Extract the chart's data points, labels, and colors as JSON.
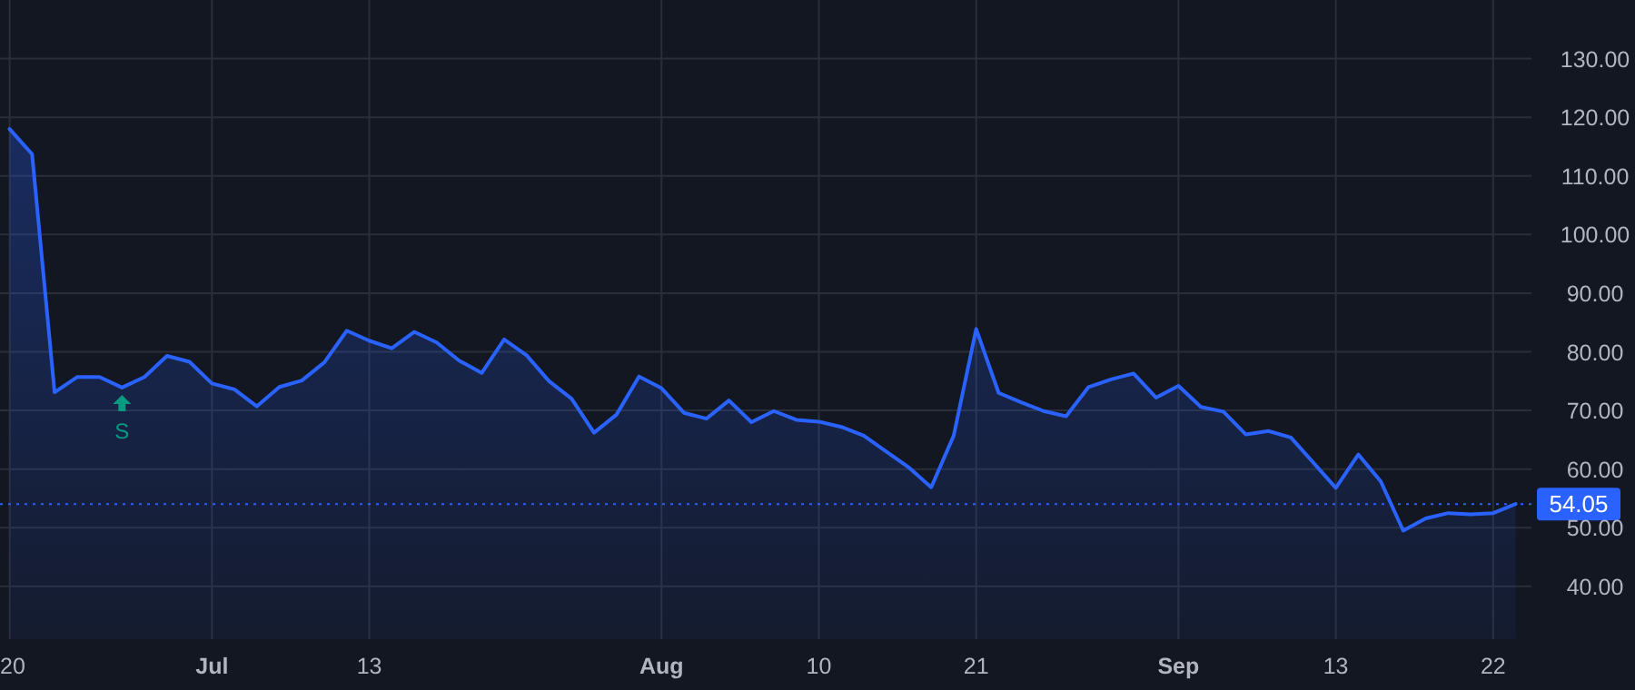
{
  "chart_data": {
    "type": "area",
    "categories": [
      "20",
      null,
      null,
      null,
      null,
      null,
      null,
      null,
      null,
      "Jul",
      null,
      null,
      null,
      null,
      null,
      null,
      "13",
      null,
      null,
      null,
      null,
      null,
      null,
      null,
      null,
      null,
      null,
      null,
      null,
      "Aug",
      null,
      null,
      null,
      null,
      null,
      null,
      "10",
      null,
      null,
      null,
      null,
      null,
      null,
      "21",
      null,
      null,
      null,
      null,
      null,
      null,
      null,
      null,
      "Sep",
      null,
      null,
      null,
      null,
      null,
      null,
      "13",
      null,
      null,
      null,
      null,
      null,
      null,
      "22",
      null
    ],
    "series": [
      {
        "color": "#2962ff",
        "values": [
          118.0,
          113.7,
          73.1,
          75.7,
          75.7,
          73.9,
          75.7,
          79.3,
          78.3,
          74.6,
          73.6,
          70.7,
          74.0,
          75.1,
          78.2,
          83.6,
          81.9,
          80.6,
          83.4,
          81.6,
          78.5,
          76.4,
          82.1,
          79.4,
          75.0,
          72.0,
          66.2,
          69.3,
          75.8,
          73.8,
          69.6,
          68.6,
          71.7,
          68.0,
          69.9,
          68.4,
          68.1,
          67.2,
          65.7,
          63.0,
          60.3,
          56.9,
          65.7,
          83.9,
          73.0,
          71.4,
          69.9,
          69.0,
          74.0,
          75.3,
          76.3,
          72.2,
          74.2,
          70.6,
          69.8,
          65.9,
          66.5,
          65.4,
          61.1,
          56.8,
          62.5,
          57.9,
          49.5,
          51.6,
          52.5,
          52.3,
          52.5,
          54.05
        ]
      }
    ],
    "ylim": [
      31,
      140
    ],
    "yticks": [
      {
        "value": 40,
        "label": "40.00"
      },
      {
        "value": 50,
        "label": "50.00"
      },
      {
        "value": 60,
        "label": "60.00"
      },
      {
        "value": 70,
        "label": "70.00"
      },
      {
        "value": 80,
        "label": "80.00"
      },
      {
        "value": 90,
        "label": "90.00"
      },
      {
        "value": 100,
        "label": "100.00"
      },
      {
        "value": 110,
        "label": "110.00"
      },
      {
        "value": 120,
        "label": "120.00"
      },
      {
        "value": 130,
        "label": "130.00"
      }
    ],
    "ref_lines": [
      {
        "axis": "y",
        "value": 54.05,
        "label": "54.05",
        "color": "#2962ff",
        "line_style": "dotted"
      }
    ],
    "annotations": [
      {
        "text": "S",
        "y": 73.9
      }
    ],
    "grid": true,
    "marker": "none",
    "line_style": "solid"
  }
}
